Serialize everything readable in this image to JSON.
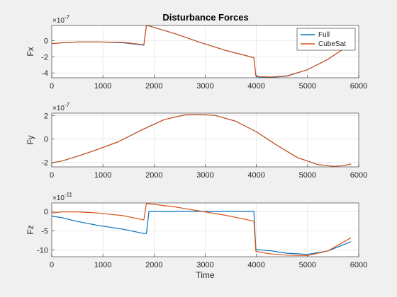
{
  "figure": {
    "title": "Disturbance Forces",
    "background": "#f0f0f0"
  },
  "colors": {
    "Full": "#0072BD",
    "CubeSat": "#D95319",
    "grid": "#dedede",
    "axes": "#262626"
  },
  "chart_data": [
    {
      "type": "line",
      "ylabel": "Fx",
      "xlabel": "",
      "exponent_base": "×10",
      "exponent_power": "-7",
      "xlim": [
        0,
        6000
      ],
      "ylim": [
        -4.6,
        1.9
      ],
      "xticks": [
        0,
        1000,
        2000,
        3000,
        4000,
        5000,
        6000
      ],
      "yticks": [
        -4,
        -2,
        0
      ],
      "grid": true,
      "legend": "top-right",
      "series": [
        {
          "name": "Full",
          "x": [
            0,
            200,
            500,
            900,
            1400,
            1800,
            1850,
            1900,
            2400,
            2900,
            3400,
            3950,
            3990,
            4050,
            4300,
            4600,
            5000,
            5400,
            5800
          ],
          "y": [
            -0.35,
            -0.25,
            -0.15,
            -0.15,
            -0.25,
            -0.55,
            1.9,
            1.85,
            0.9,
            -0.2,
            -1.2,
            -2.1,
            -4.4,
            -4.5,
            -4.55,
            -4.4,
            -3.6,
            -2.3,
            -0.6
          ]
        },
        {
          "name": "CubeSat",
          "x": [
            0,
            200,
            500,
            900,
            1400,
            1800,
            1850,
            1900,
            2400,
            2900,
            3400,
            3950,
            3990,
            4050,
            4300,
            4600,
            5000,
            5400,
            5800
          ],
          "y": [
            -0.35,
            -0.25,
            -0.15,
            -0.15,
            -0.2,
            -0.5,
            1.9,
            1.85,
            0.9,
            -0.2,
            -1.2,
            -2.1,
            -4.3,
            -4.45,
            -4.5,
            -4.35,
            -3.6,
            -2.3,
            -0.6
          ]
        }
      ]
    },
    {
      "type": "line",
      "ylabel": "Fy",
      "xlabel": "",
      "exponent_base": "×10",
      "exponent_power": "-7",
      "xlim": [
        0,
        6000
      ],
      "ylim": [
        -2.4,
        2.2
      ],
      "xticks": [
        0,
        1000,
        2000,
        3000,
        4000,
        5000,
        6000
      ],
      "yticks": [
        -2,
        0,
        2
      ],
      "grid": true,
      "series": [
        {
          "name": "Full",
          "x": [
            0,
            200,
            500,
            900,
            1300,
            1800,
            2200,
            2600,
            2900,
            3200,
            3600,
            4000,
            4400,
            4800,
            5200,
            5500,
            5700,
            5850
          ],
          "y": [
            -2.05,
            -1.9,
            -1.5,
            -0.9,
            -0.25,
            0.85,
            1.65,
            2.05,
            2.1,
            2.0,
            1.5,
            0.6,
            -0.55,
            -1.6,
            -2.2,
            -2.35,
            -2.3,
            -2.15
          ]
        },
        {
          "name": "CubeSat",
          "x": [
            0,
            200,
            500,
            900,
            1300,
            1800,
            2200,
            2600,
            2900,
            3200,
            3600,
            4000,
            4400,
            4800,
            5200,
            5500,
            5700,
            5850
          ],
          "y": [
            -2.05,
            -1.9,
            -1.5,
            -0.9,
            -0.25,
            0.85,
            1.65,
            2.05,
            2.1,
            2.0,
            1.5,
            0.6,
            -0.55,
            -1.6,
            -2.2,
            -2.35,
            -2.3,
            -2.15
          ]
        }
      ]
    },
    {
      "type": "line",
      "ylabel": "Fz",
      "xlabel": "Time",
      "exponent_base": "×10",
      "exponent_power": "-11",
      "xlim": [
        0,
        6000
      ],
      "ylim": [
        -11.7,
        2.2
      ],
      "xticks": [
        0,
        1000,
        2000,
        3000,
        4000,
        5000,
        6000
      ],
      "yticks": [
        -10,
        -5,
        0
      ],
      "grid": true,
      "series": [
        {
          "name": "Full",
          "x": [
            0,
            200,
            500,
            900,
            1400,
            1800,
            1850,
            1900,
            2500,
            3000,
            3500,
            3950,
            3990,
            4100,
            4300,
            4600,
            5000,
            5400,
            5850
          ],
          "y": [
            -1.2,
            -1.6,
            -2.6,
            -3.6,
            -4.6,
            -5.7,
            -5.7,
            0,
            0,
            0,
            0,
            0,
            -9.8,
            -10.0,
            -10.2,
            -10.8,
            -11.1,
            -10.2,
            -7.8
          ]
        },
        {
          "name": "CubeSat",
          "x": [
            0,
            200,
            500,
            900,
            1400,
            1800,
            1850,
            1900,
            2400,
            2900,
            3400,
            3950,
            3990,
            4100,
            4300,
            4600,
            5000,
            5400,
            5850
          ],
          "y": [
            -0.4,
            -0.1,
            -0.1,
            -0.4,
            -1.1,
            -2.2,
            2.1,
            2.0,
            1.2,
            0.1,
            -1.0,
            -2.5,
            -10.3,
            -10.6,
            -11.0,
            -11.3,
            -11.4,
            -10.2,
            -6.8
          ]
        }
      ]
    }
  ]
}
